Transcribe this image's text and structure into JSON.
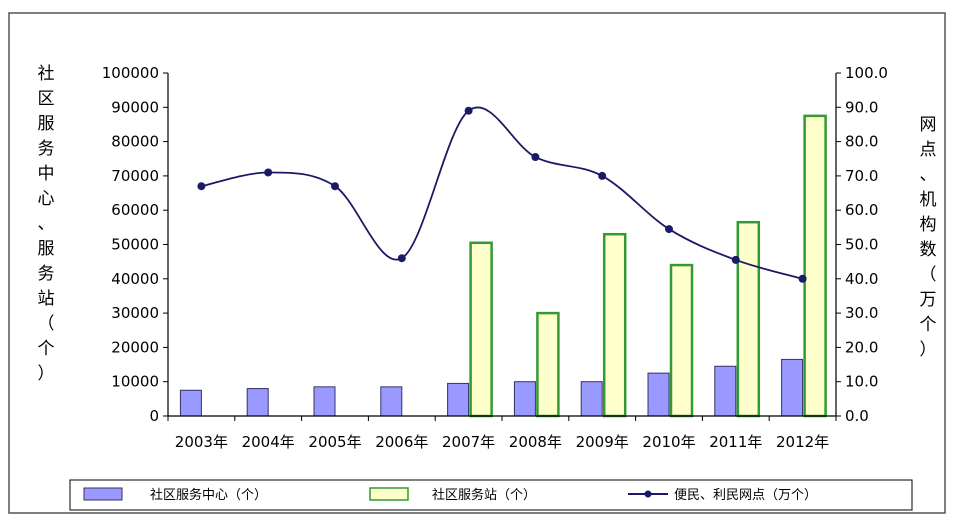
{
  "chart_data": {
    "type": "bar",
    "categories": [
      "2003年",
      "2004年",
      "2005年",
      "2006年",
      "2007年",
      "2008年",
      "2009年",
      "2010年",
      "2011年",
      "2012年"
    ],
    "left_axis": {
      "label": "社区服务中心、服务站（个）",
      "ylim": [
        0,
        100000
      ],
      "ticks": [
        "0",
        "10000",
        "20000",
        "30000",
        "40000",
        "50000",
        "60000",
        "70000",
        "80000",
        "90000",
        "100000"
      ]
    },
    "right_axis": {
      "label": "网点、机构数（万个）",
      "ylim": [
        0,
        100
      ],
      "ticks": [
        "0.0",
        "10.0",
        "20.0",
        "30.0",
        "40.0",
        "50.0",
        "60.0",
        "70.0",
        "80.0",
        "90.0",
        "100.0"
      ]
    },
    "series": [
      {
        "name": "社区服务中心（个）",
        "type": "bar",
        "axis": "left",
        "color": "#9999ff",
        "values": [
          7500,
          8000,
          8500,
          8500,
          9500,
          10000,
          10000,
          12500,
          14500,
          16500
        ]
      },
      {
        "name": "社区服务站（个）",
        "type": "bar",
        "axis": "left",
        "color": "#ffffcc",
        "stroke": "#339933",
        "values": [
          null,
          null,
          null,
          null,
          50500,
          30000,
          53000,
          44000,
          56500,
          87500
        ]
      },
      {
        "name": "便民、利民网点（万个）",
        "type": "line",
        "axis": "right",
        "color": "#1a1a66",
        "values": [
          67,
          71,
          67,
          46,
          89,
          75.5,
          70,
          54.5,
          45.5,
          40
        ]
      }
    ],
    "grid": false,
    "legend_position": "bottom"
  }
}
